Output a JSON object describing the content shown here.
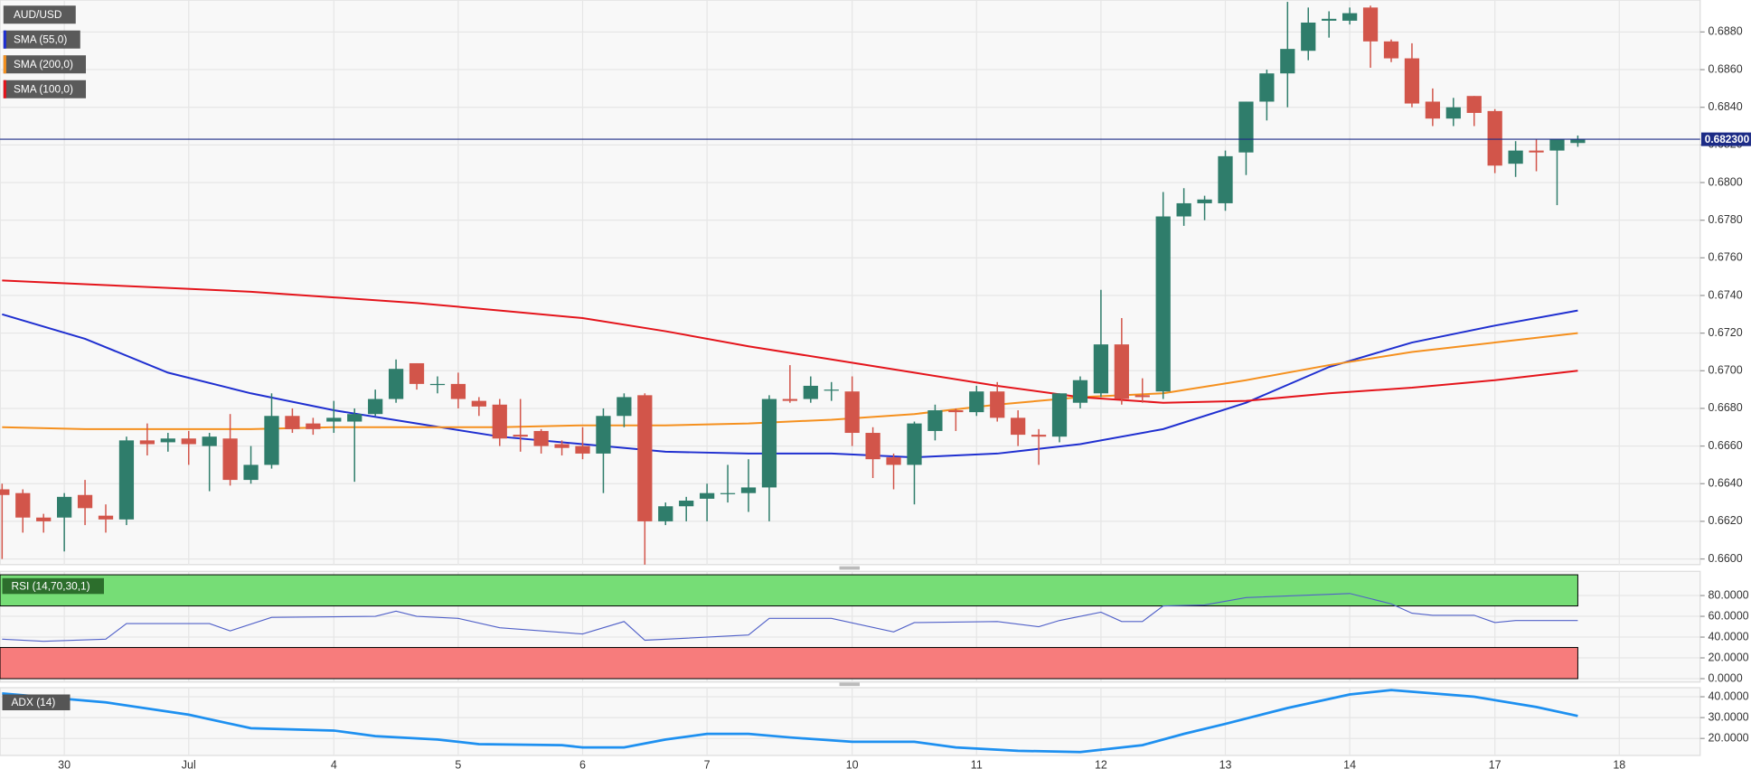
{
  "chart_data": [
    {
      "type": "candlestick",
      "name": "AUD/USD",
      "open": [
        0.6637,
        0.6635,
        0.6622,
        0.6622,
        0.6634,
        0.6623,
        0.6621,
        0.6663,
        0.6662,
        0.6664,
        0.666,
        0.6664,
        0.6642,
        0.665,
        0.6676,
        0.6672,
        0.6673,
        0.6673,
        0.6677,
        0.6685,
        0.6704,
        0.6693,
        0.6693,
        0.6684,
        0.6682,
        0.6666,
        0.6668,
        0.6661,
        0.666,
        0.6656,
        0.6676,
        0.6687,
        0.662,
        0.6628,
        0.6632,
        0.6635,
        0.6635,
        0.6638,
        0.6685,
        0.6685,
        0.669,
        0.6689,
        0.6667,
        0.6654,
        0.665,
        0.6668,
        0.6679,
        0.6678,
        0.6689,
        0.6675,
        0.6666,
        0.6665,
        0.6683,
        0.6688,
        0.6714,
        0.6687,
        0.6689,
        0.6782,
        0.6789,
        0.6789,
        0.6816,
        0.6843,
        0.6858,
        0.687,
        0.6886,
        0.6886,
        0.6893,
        0.6875,
        0.6866,
        0.6843,
        0.6834,
        0.6846,
        0.6838,
        0.681,
        0.6817,
        0.6817,
        0.6821
      ],
      "high": [
        0.664,
        0.6637,
        0.6624,
        0.6635,
        0.6642,
        0.6629,
        0.6665,
        0.6672,
        0.6667,
        0.6668,
        0.6667,
        0.6677,
        0.666,
        0.6688,
        0.668,
        0.6675,
        0.6684,
        0.668,
        0.669,
        0.6706,
        0.6704,
        0.6697,
        0.6699,
        0.6686,
        0.6685,
        0.6685,
        0.6669,
        0.6663,
        0.667,
        0.668,
        0.6688,
        0.6688,
        0.663,
        0.6633,
        0.664,
        0.665,
        0.6653,
        0.6687,
        0.6703,
        0.6697,
        0.6694,
        0.6697,
        0.667,
        0.6656,
        0.6673,
        0.6682,
        0.668,
        0.6692,
        0.6694,
        0.6679,
        0.6669,
        0.6688,
        0.6697,
        0.6743,
        0.6728,
        0.6696,
        0.6795,
        0.6797,
        0.6793,
        0.6817,
        0.6843,
        0.686,
        0.6896,
        0.6893,
        0.6891,
        0.6893,
        0.6894,
        0.6876,
        0.6874,
        0.685,
        0.6845,
        0.6846,
        0.6839,
        0.6822,
        0.6823,
        0.6823,
        0.6825
      ],
      "low": [
        0.66,
        0.6614,
        0.6614,
        0.6604,
        0.6618,
        0.6614,
        0.6618,
        0.6655,
        0.6657,
        0.665,
        0.6636,
        0.6639,
        0.664,
        0.6648,
        0.6667,
        0.6666,
        0.6667,
        0.6641,
        0.6676,
        0.6683,
        0.669,
        0.6688,
        0.668,
        0.6676,
        0.666,
        0.6657,
        0.6656,
        0.6655,
        0.6653,
        0.6635,
        0.667,
        0.6597,
        0.6618,
        0.662,
        0.662,
        0.663,
        0.6625,
        0.662,
        0.6683,
        0.6683,
        0.6684,
        0.666,
        0.6643,
        0.6637,
        0.6629,
        0.6663,
        0.6668,
        0.6676,
        0.6673,
        0.666,
        0.665,
        0.6662,
        0.668,
        0.6686,
        0.6682,
        0.6683,
        0.6685,
        0.6777,
        0.678,
        0.6785,
        0.6804,
        0.6833,
        0.684,
        0.6865,
        0.6877,
        0.6884,
        0.6861,
        0.6864,
        0.684,
        0.683,
        0.683,
        0.683,
        0.6805,
        0.6803,
        0.6806,
        0.6788,
        0.6819
      ],
      "close": [
        0.6634,
        0.6622,
        0.662,
        0.6633,
        0.6627,
        0.6621,
        0.6663,
        0.6661,
        0.6664,
        0.6661,
        0.6665,
        0.6642,
        0.665,
        0.6676,
        0.6669,
        0.6669,
        0.6675,
        0.6677,
        0.6685,
        0.6701,
        0.6693,
        0.6693,
        0.6685,
        0.6681,
        0.6664,
        0.6665,
        0.666,
        0.6659,
        0.6656,
        0.6676,
        0.6686,
        0.662,
        0.6628,
        0.6631,
        0.6635,
        0.6635,
        0.6638,
        0.6685,
        0.6684,
        0.6692,
        0.669,
        0.6667,
        0.6653,
        0.665,
        0.6672,
        0.6679,
        0.6678,
        0.6689,
        0.6675,
        0.6666,
        0.6665,
        0.6688,
        0.6695,
        0.6714,
        0.6685,
        0.6686,
        0.6782,
        0.6789,
        0.6791,
        0.6814,
        0.6843,
        0.6858,
        0.6871,
        0.6885,
        0.6887,
        0.689,
        0.6875,
        0.6866,
        0.6842,
        0.6834,
        0.684,
        0.6837,
        0.6809,
        0.6817,
        0.6816,
        0.6823,
        0.6823
      ],
      "up_color": "#2f7d6b",
      "down_color": "#d2554a",
      "xlim": [
        -0.1,
        81.9
      ],
      "xticks": [
        {
          "value": 3,
          "label": "30"
        },
        {
          "value": 9,
          "label": "Jul"
        },
        {
          "value": 16,
          "label": "4"
        },
        {
          "value": 22,
          "label": "5"
        },
        {
          "value": 28,
          "label": "6"
        },
        {
          "value": 34,
          "label": "7"
        },
        {
          "value": 41,
          "label": "10"
        },
        {
          "value": 47,
          "label": "11"
        },
        {
          "value": 53,
          "label": "12"
        },
        {
          "value": 59,
          "label": "13"
        },
        {
          "value": 65,
          "label": "14"
        },
        {
          "value": 72,
          "label": "17"
        },
        {
          "value": 78,
          "label": "18"
        }
      ],
      "ylim": [
        0.6597,
        0.6897
      ],
      "yticks": [
        {
          "value": 0.66,
          "label": "0.6600"
        },
        {
          "value": 0.662,
          "label": "0.6620"
        },
        {
          "value": 0.664,
          "label": "0.6640"
        },
        {
          "value": 0.666,
          "label": "0.6660"
        },
        {
          "value": 0.668,
          "label": "0.6680"
        },
        {
          "value": 0.67,
          "label": "0.6700"
        },
        {
          "value": 0.672,
          "label": "0.6720"
        },
        {
          "value": 0.674,
          "label": "0.6740"
        },
        {
          "value": 0.676,
          "label": "0.6760"
        },
        {
          "value": 0.678,
          "label": "0.6780"
        },
        {
          "value": 0.68,
          "label": "0.6800"
        },
        {
          "value": 0.682,
          "label": "0.6820"
        },
        {
          "value": 0.684,
          "label": "0.6840"
        },
        {
          "value": 0.686,
          "label": "0.6860"
        },
        {
          "value": 0.688,
          "label": "0.6880"
        }
      ],
      "grid": true,
      "series": [
        {
          "name": "SMA (55,0)",
          "color": "#1f2fd0",
          "x": [
            0,
            4,
            8,
            12,
            16,
            20,
            24,
            28,
            32,
            36,
            40,
            44,
            48,
            52,
            56,
            60,
            64,
            68,
            72,
            76
          ],
          "values": [
            0.673,
            0.6717,
            0.6699,
            0.6688,
            0.6679,
            0.6672,
            0.6665,
            0.6661,
            0.6657,
            0.6656,
            0.6656,
            0.6654,
            0.6656,
            0.6661,
            0.6669,
            0.6683,
            0.6702,
            0.6715,
            0.6724,
            0.6732
          ]
        },
        {
          "name": "SMA (200,0)",
          "color": "#f5901e",
          "x": [
            0,
            4,
            8,
            12,
            16,
            20,
            24,
            28,
            32,
            36,
            40,
            44,
            48,
            52,
            56,
            60,
            64,
            68,
            72,
            76
          ],
          "values": [
            0.667,
            0.6669,
            0.6669,
            0.6669,
            0.667,
            0.667,
            0.667,
            0.6671,
            0.6671,
            0.6672,
            0.6674,
            0.6677,
            0.6682,
            0.6686,
            0.6688,
            0.6695,
            0.6703,
            0.671,
            0.6715,
            0.672
          ]
        },
        {
          "name": "SMA (100,0)",
          "color": "#e4141b",
          "x": [
            0,
            4,
            8,
            12,
            16,
            20,
            24,
            28,
            32,
            36,
            40,
            44,
            48,
            52,
            56,
            60,
            64,
            68,
            72,
            76
          ],
          "values": [
            0.6748,
            0.6746,
            0.6744,
            0.6742,
            0.6739,
            0.6736,
            0.6732,
            0.6728,
            0.6721,
            0.6713,
            0.6706,
            0.6699,
            0.6692,
            0.6686,
            0.6683,
            0.6684,
            0.6688,
            0.6691,
            0.6695,
            0.67
          ]
        }
      ],
      "last_price": {
        "value": 0.6823,
        "label": "0.682300",
        "color": "#1c2b86"
      }
    },
    {
      "type": "line",
      "series": [
        {
          "name": "RSI (14,70,30,1)",
          "color": "#5060c8",
          "x": [
            0,
            2,
            5,
            6,
            10,
            11,
            13,
            18,
            19,
            20,
            22,
            24,
            28,
            30,
            31,
            36,
            37,
            40,
            43,
            44,
            48,
            50,
            51,
            53,
            54,
            55,
            56,
            58,
            60,
            65,
            66,
            67,
            68,
            69,
            71,
            72,
            73,
            76
          ],
          "values": [
            38,
            36,
            38,
            53,
            53,
            46,
            59,
            60,
            65,
            60,
            58,
            49,
            43,
            55,
            37,
            42,
            58,
            58,
            45,
            54,
            55,
            50,
            56,
            64,
            55,
            55,
            70,
            71,
            78,
            82,
            77,
            72,
            63,
            61,
            61,
            54,
            56,
            56
          ]
        }
      ],
      "label_color": "#2c6e2c",
      "overbought": 70,
      "oversold": 30,
      "overbought_color": "#76dd76",
      "oversold_color": "#f77c7c",
      "ylim": [
        0,
        100
      ],
      "yticks": [
        {
          "value": 0,
          "label": "0.0000"
        },
        {
          "value": 20,
          "label": "20.0000"
        },
        {
          "value": 40,
          "label": "40.0000"
        },
        {
          "value": 60,
          "label": "60.0000"
        },
        {
          "value": 80,
          "label": "80.0000"
        }
      ]
    },
    {
      "type": "line",
      "series": [
        {
          "name": "ADX (14)",
          "color": "#1e90f0",
          "x": [
            0,
            5,
            9,
            12,
            16,
            18,
            21,
            23,
            27,
            28,
            30,
            32,
            34,
            36,
            38,
            41,
            44,
            46,
            49,
            52,
            55,
            57,
            59,
            62,
            65,
            67,
            71,
            74,
            76
          ],
          "values": [
            41.6,
            37.3,
            31.4,
            24.9,
            23.8,
            21.1,
            19.5,
            17.3,
            16.8,
            15.7,
            15.7,
            19.5,
            22.2,
            22.2,
            20.5,
            18.4,
            18.4,
            15.7,
            14.1,
            13.5,
            16.8,
            22.2,
            27.0,
            34.6,
            41.1,
            43.2,
            40,
            35.1,
            30.8
          ]
        }
      ],
      "label_color": "#555555",
      "ylim": [
        12.4,
        43.8
      ],
      "yticks": [
        {
          "value": 20,
          "label": "20.0000"
        },
        {
          "value": 30,
          "label": "30.0000"
        },
        {
          "value": 40,
          "label": "40.0000"
        }
      ]
    }
  ]
}
